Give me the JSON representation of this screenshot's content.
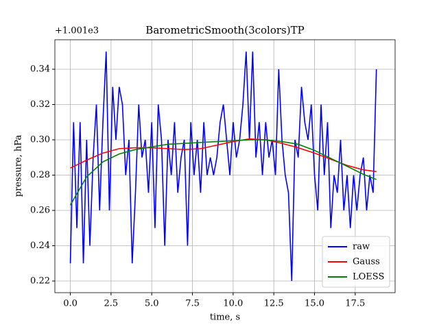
{
  "chart_data": {
    "type": "line",
    "title": "BarometricSmooth(3colors)TP",
    "offset_text": "+1.001e3",
    "x_label": "time, s",
    "y_label": "pressure, hPa",
    "xlim": [
      -0.95,
      19.95
    ],
    "ylim": [
      0.2134,
      0.3567
    ],
    "xticks": [
      {
        "value": 0,
        "label": "0.0"
      },
      2.5,
      {
        "value": 5,
        "label": "5.0"
      },
      7.5,
      {
        "value": 10,
        "label": "10.0"
      },
      12.5,
      {
        "value": 15,
        "label": "15.0"
      },
      17.5
    ],
    "yticks": [
      0.22,
      0.24,
      0.26,
      0.28,
      {
        "value": 0.3,
        "label": "0.30"
      },
      0.32,
      0.34
    ],
    "grid": true,
    "legend": "lower right",
    "series": [
      {
        "name": "raw",
        "color": "#0000ff",
        "x": [
          0.0,
          0.2,
          0.4,
          0.6,
          0.8,
          1.0,
          1.2,
          1.4,
          1.6,
          1.8,
          2.0,
          2.2,
          2.4,
          2.6,
          2.8,
          3.0,
          3.2,
          3.4,
          3.6,
          3.8,
          4.0,
          4.2,
          4.4,
          4.6,
          4.8,
          5.0,
          5.2,
          5.4,
          5.6,
          5.8,
          6.0,
          6.2,
          6.4,
          6.6,
          6.8,
          7.0,
          7.2,
          7.4,
          7.6,
          7.8,
          8.0,
          8.2,
          8.4,
          8.6,
          8.8,
          9.0,
          9.2,
          9.4,
          9.6,
          9.8,
          10.0,
          10.2,
          10.4,
          10.6,
          10.8,
          11.0,
          11.2,
          11.4,
          11.6,
          11.8,
          12.0,
          12.2,
          12.4,
          12.6,
          12.8,
          13.0,
          13.2,
          13.4,
          13.6,
          13.8,
          14.0,
          14.2,
          14.4,
          14.6,
          14.8,
          15.0,
          15.2,
          15.4,
          15.6,
          15.8,
          16.0,
          16.2,
          16.4,
          16.6,
          16.8,
          17.0,
          17.2,
          17.4,
          17.6,
          17.8,
          18.0,
          18.2,
          18.4,
          18.6,
          18.8
        ],
        "values": [
          0.23,
          0.31,
          0.25,
          0.31,
          0.23,
          0.3,
          0.24,
          0.29,
          0.32,
          0.26,
          0.31,
          0.35,
          0.26,
          0.33,
          0.3,
          0.33,
          0.32,
          0.28,
          0.3,
          0.23,
          0.27,
          0.32,
          0.29,
          0.3,
          0.27,
          0.31,
          0.25,
          0.32,
          0.3,
          0.24,
          0.3,
          0.28,
          0.31,
          0.27,
          0.29,
          0.3,
          0.24,
          0.31,
          0.28,
          0.3,
          0.27,
          0.31,
          0.28,
          0.29,
          0.28,
          0.29,
          0.31,
          0.32,
          0.3,
          0.28,
          0.31,
          0.29,
          0.3,
          0.32,
          0.35,
          0.3,
          0.35,
          0.29,
          0.31,
          0.28,
          0.31,
          0.29,
          0.3,
          0.28,
          0.34,
          0.3,
          0.28,
          0.27,
          0.22,
          0.3,
          0.29,
          0.33,
          0.31,
          0.3,
          0.32,
          0.28,
          0.26,
          0.32,
          0.28,
          0.31,
          0.25,
          0.28,
          0.27,
          0.3,
          0.26,
          0.28,
          0.25,
          0.28,
          0.26,
          0.28,
          0.29,
          0.26,
          0.28,
          0.27,
          0.34
        ]
      },
      {
        "name": "Gauss",
        "color": "#ff0000",
        "x": [
          0,
          1,
          2,
          3,
          4,
          5,
          6,
          7,
          8,
          9,
          10,
          11,
          12,
          13,
          14,
          15,
          16,
          17,
          18,
          18.8
        ],
        "values": [
          0.284,
          0.2885,
          0.2925,
          0.295,
          0.2955,
          0.2955,
          0.295,
          0.2945,
          0.295,
          0.297,
          0.299,
          0.3005,
          0.3,
          0.298,
          0.2955,
          0.2925,
          0.289,
          0.2855,
          0.283,
          0.282
        ]
      },
      {
        "name": "LOESS",
        "color": "#008000",
        "x": [
          0,
          1,
          2,
          3,
          4,
          5,
          6,
          7,
          8,
          9,
          10,
          11,
          12,
          13,
          14,
          15,
          16,
          17,
          18,
          18.8
        ],
        "values": [
          0.263,
          0.279,
          0.2875,
          0.292,
          0.2945,
          0.296,
          0.2975,
          0.298,
          0.2985,
          0.299,
          0.2995,
          0.3,
          0.3,
          0.299,
          0.2975,
          0.294,
          0.2895,
          0.285,
          0.2805,
          0.2775
        ]
      }
    ]
  }
}
